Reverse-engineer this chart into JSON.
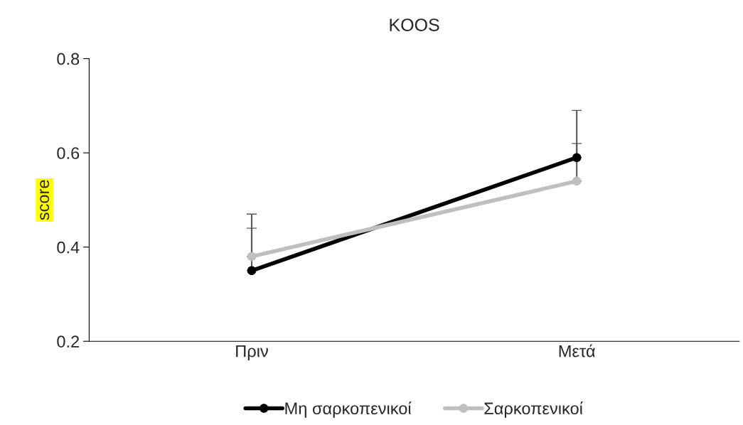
{
  "chart_data": {
    "type": "line",
    "title": "KOOS",
    "ylabel": "score",
    "categories": [
      "Πριν",
      "Μετά"
    ],
    "series": [
      {
        "name": "Μη σαρκοπενικοί",
        "color": "#000000",
        "values": [
          0.35,
          0.59
        ],
        "errors": [
          [
            0.35,
            0.47
          ],
          [
            0.59,
            0.69
          ]
        ]
      },
      {
        "name": "Σαρκοπενικοί",
        "color": "#bfbfbf",
        "values": [
          0.38,
          0.54
        ],
        "errors": [
          [
            0.38,
            0.44
          ],
          [
            0.54,
            0.62
          ]
        ]
      }
    ],
    "ylim": [
      0.2,
      0.8
    ],
    "yticks": [
      0.2,
      0.4,
      0.6,
      0.8
    ],
    "grid": false,
    "legend": "bottom",
    "marker": "circle",
    "line_style": "solid"
  }
}
